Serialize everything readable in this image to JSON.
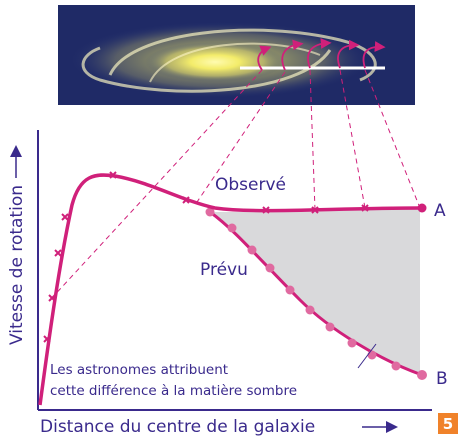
{
  "figure": {
    "curves": {
      "observed": "Observé",
      "predicted": "Prévu",
      "end_observed": "A",
      "end_predicted": "B"
    },
    "annotation": [
      "Les astronomes attribuent",
      "cette différence à la matière sombre"
    ],
    "y_axis_label": "Vitesse de rotation",
    "x_axis_label": "Distance du centre de la galaxie",
    "figure_number": "5"
  }
}
